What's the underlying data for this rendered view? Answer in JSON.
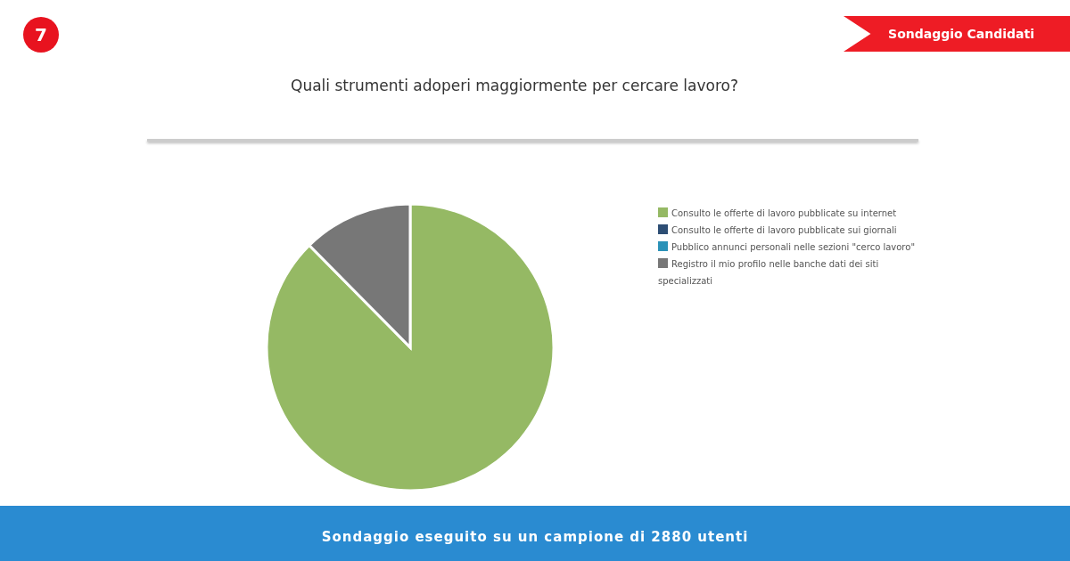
{
  "chart_data": {
    "type": "pie",
    "title": "Quali strumenti adoperi maggiormente per cercare lavoro?",
    "categories": [
      "Consulto le offerte di lavoro pubblicate su internet",
      "Consulto le offerte di lavoro pubblicate sui giornali",
      "Pubblico annunci personali nelle sezioni \"cerco lavoro\"",
      "Registro il mio profilo nelle banche dati dei siti specializzati"
    ],
    "values": [
      87.6,
      0,
      0,
      12.4
    ],
    "colors": [
      "#95b964",
      "#2d4e74",
      "#2b92b8",
      "#777777"
    ],
    "legend": "right",
    "annotations": [
      "7",
      "Sondaggio Candidati",
      "Sondaggio eseguito su un campione di 2880 utenti"
    ]
  }
}
